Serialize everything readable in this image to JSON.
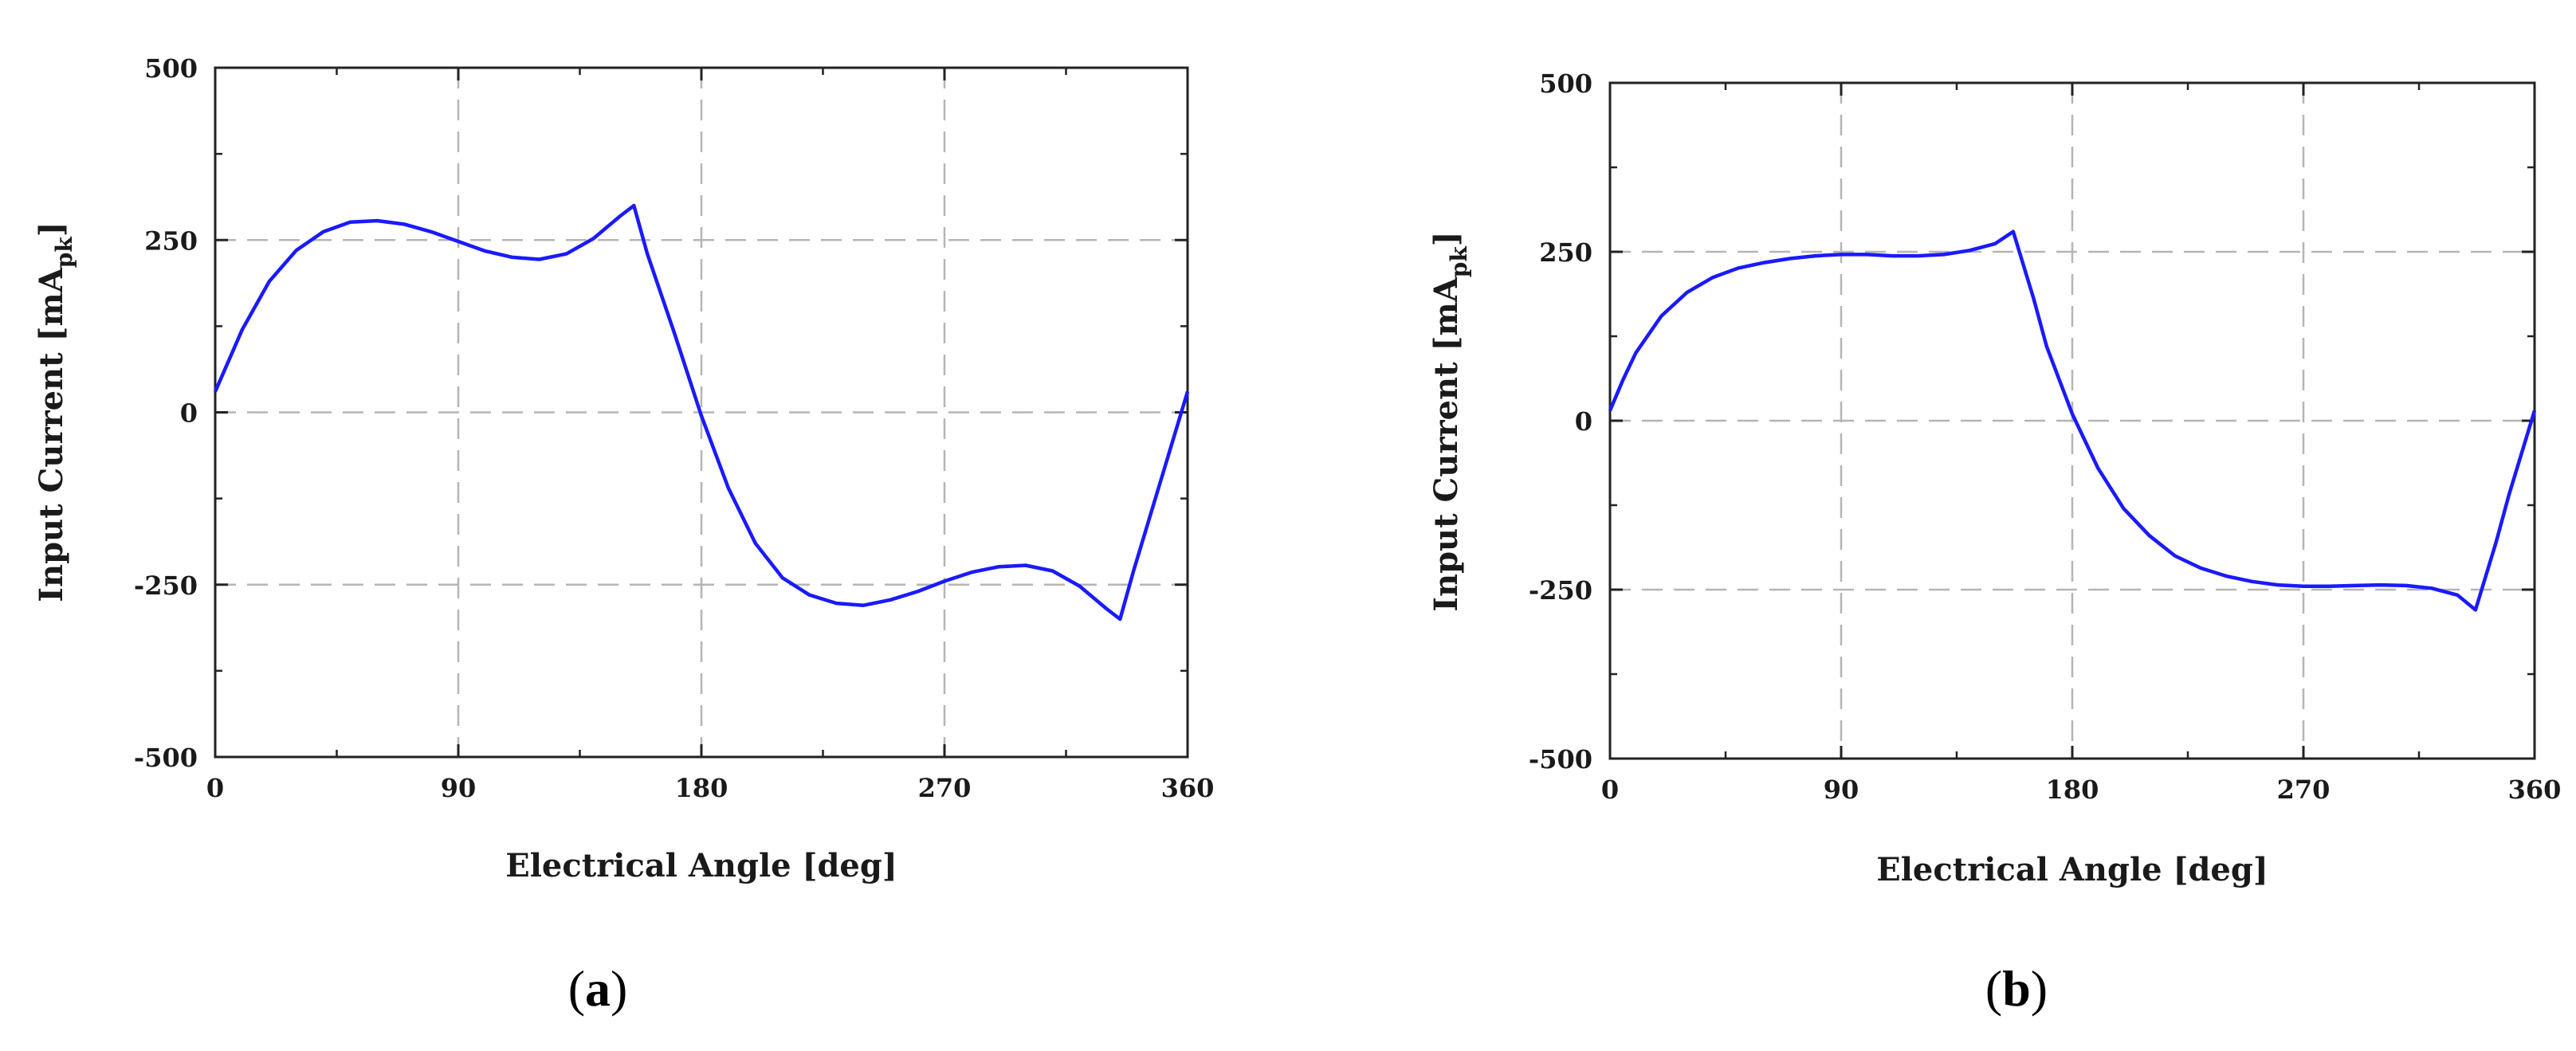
{
  "chart_data": [
    {
      "type": "line",
      "panel_label": "a",
      "xlabel": "Electrical Angle [deg]",
      "ylabel_main": "Input Current [mA",
      "ylabel_sub": "pk",
      "ylabel_close": "]",
      "xlim": [
        0,
        360
      ],
      "ylim": [
        -500,
        500
      ],
      "xticks": [
        0,
        90,
        180,
        270,
        360
      ],
      "yticks": [
        -500,
        -250,
        0,
        250,
        500
      ],
      "grid": true,
      "line_color": "#1a1aff",
      "series": [
        {
          "x": [
            0,
            10,
            20,
            30,
            40,
            50,
            60,
            70,
            80,
            90,
            100,
            110,
            120,
            130,
            140,
            150,
            155,
            160,
            170,
            180,
            190,
            200,
            210,
            220,
            230,
            240,
            250,
            260,
            270,
            280,
            290,
            300,
            310,
            320,
            330,
            335,
            340,
            350,
            360
          ],
          "y": [
            30,
            120,
            190,
            235,
            262,
            276,
            278,
            273,
            262,
            248,
            234,
            225,
            222,
            230,
            252,
            285,
            300,
            230,
            115,
            -5,
            -110,
            -190,
            -240,
            -265,
            -277,
            -280,
            -272,
            -260,
            -245,
            -232,
            -224,
            -222,
            -230,
            -252,
            -285,
            -300,
            -230,
            -100,
            30
          ]
        }
      ]
    },
    {
      "type": "line",
      "panel_label": "b",
      "xlabel": "Electrical Angle [deg]",
      "ylabel_main": "Input Current [mA",
      "ylabel_sub": "pk",
      "ylabel_close": "]",
      "xlim": [
        0,
        360
      ],
      "ylim": [
        -500,
        500
      ],
      "xticks": [
        0,
        90,
        180,
        270,
        360
      ],
      "yticks": [
        -500,
        -250,
        0,
        250,
        500
      ],
      "grid": true,
      "line_color": "#1a1aff",
      "series": [
        {
          "x": [
            0,
            5,
            10,
            20,
            30,
            40,
            50,
            60,
            70,
            80,
            90,
            100,
            110,
            120,
            130,
            140,
            150,
            157,
            165,
            170,
            180,
            190,
            200,
            210,
            220,
            230,
            240,
            250,
            260,
            270,
            280,
            290,
            300,
            310,
            320,
            330,
            337,
            345,
            350,
            360
          ],
          "y": [
            15,
            60,
            100,
            155,
            190,
            212,
            226,
            234,
            240,
            244,
            246,
            246,
            244,
            244,
            246,
            252,
            262,
            280,
            180,
            110,
            10,
            -70,
            -130,
            -170,
            -200,
            -218,
            -230,
            -238,
            -243,
            -245,
            -245,
            -244,
            -243,
            -244,
            -248,
            -258,
            -280,
            -180,
            -110,
            15
          ]
        }
      ]
    }
  ]
}
